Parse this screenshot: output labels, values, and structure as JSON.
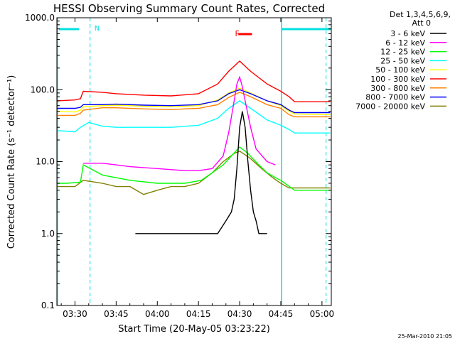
{
  "chart_data": {
    "type": "line",
    "title": "HESSI Observing Summary Count Rates, Corrected",
    "xlabel": "Start Time (20-May-05 03:23:22)",
    "ylabel": "Corrected Count Rate (s⁻¹ detector⁻¹)",
    "y_scale": "log",
    "ylim": [
      0.1,
      1000
    ],
    "xlim_minutes": [
      203.4,
      303.4
    ],
    "x_ticks": [
      {
        "m": 210,
        "label": "03:30"
      },
      {
        "m": 225,
        "label": "03:45"
      },
      {
        "m": 240,
        "label": "04:00"
      },
      {
        "m": 255,
        "label": "04:15"
      },
      {
        "m": 270,
        "label": "04:30"
      },
      {
        "m": 285,
        "label": "04:45"
      },
      {
        "m": 300,
        "label": "05:00"
      }
    ],
    "y_ticks": [
      {
        "v": 0.1,
        "label": "0.1"
      },
      {
        "v": 1,
        "label": "1.0"
      },
      {
        "v": 10,
        "label": "10.0"
      },
      {
        "v": 100,
        "label": "100.0"
      },
      {
        "v": 1000,
        "label": "1000.0"
      }
    ],
    "legend_header": [
      "Det 1,3,4,5,6,9,",
      "Att 0"
    ],
    "series": [
      {
        "name": "3 - 6 keV",
        "color": "#000000",
        "x": [
          232,
          235,
          240,
          250,
          258,
          262,
          265,
          267,
          268,
          269,
          270,
          271,
          272,
          273,
          274,
          275,
          276,
          277,
          278,
          280
        ],
        "y": [
          1.0,
          1.0,
          1.0,
          1.0,
          1.0,
          1.0,
          1.5,
          2.0,
          3.0,
          8.0,
          30,
          50,
          30,
          10,
          4,
          2,
          1.5,
          1.0,
          1.0,
          1.0
        ]
      },
      {
        "name": "6 - 12 keV",
        "color": "#ff00ff",
        "x": [
          213,
          220,
          225,
          230,
          240,
          250,
          255,
          260,
          264,
          266,
          268,
          269,
          270,
          271,
          272,
          274,
          276,
          280,
          283
        ],
        "y": [
          9.5,
          9.5,
          9.0,
          8.5,
          8.0,
          7.5,
          7.5,
          8.0,
          12,
          25,
          70,
          120,
          150,
          110,
          70,
          30,
          15,
          10,
          9
        ]
      },
      {
        "name": "12 - 25 keV",
        "color": "#00ff00",
        "x": [
          203.5,
          207,
          212,
          213,
          220,
          230,
          240,
          250,
          256,
          260,
          264,
          267,
          270,
          273,
          277,
          280,
          283,
          285,
          290,
          303
        ],
        "y": [
          5.0,
          5.0,
          5.2,
          9.0,
          6.5,
          5.5,
          5.0,
          5.0,
          5.5,
          7.0,
          9.0,
          12,
          16,
          13,
          9,
          7,
          6,
          5.5,
          4,
          4
        ]
      },
      {
        "name": "25 - 50 keV",
        "color": "#00ffff",
        "x": [
          203.5,
          210,
          212,
          215,
          220,
          225,
          235,
          245,
          255,
          262,
          266,
          270,
          274,
          280,
          285,
          288,
          290,
          303
        ],
        "y": [
          27,
          26,
          30,
          35,
          31,
          30,
          30,
          30,
          32,
          40,
          55,
          70,
          55,
          38,
          32,
          28,
          25,
          25
        ]
      },
      {
        "name": "50 - 100 keV",
        "color": "#ffff00",
        "x": [
          203.5,
          210,
          212,
          213,
          220,
          225,
          235,
          245,
          255,
          262,
          266,
          270,
          274,
          280,
          285,
          288,
          290,
          303
        ],
        "y": [
          50,
          49,
          52,
          58,
          60,
          61,
          59,
          58,
          60,
          72,
          90,
          105,
          90,
          70,
          60,
          50,
          46,
          45
        ]
      },
      {
        "name": "100 - 300 keV",
        "color": "#ff0000",
        "x": [
          203.5,
          210,
          212,
          213,
          220,
          225,
          235,
          245,
          255,
          262,
          266,
          270,
          274,
          280,
          285,
          288,
          290,
          303
        ],
        "y": [
          70,
          72,
          75,
          95,
          92,
          88,
          84,
          82,
          88,
          120,
          180,
          250,
          180,
          120,
          95,
          80,
          68,
          68
        ]
      },
      {
        "name": "300 - 800 keV",
        "color": "#ff8000",
        "x": [
          203.5,
          210,
          212,
          213,
          220,
          225,
          235,
          245,
          255,
          262,
          266,
          270,
          274,
          280,
          285,
          288,
          290,
          303
        ],
        "y": [
          44,
          44,
          47,
          52,
          56,
          56,
          54,
          53,
          55,
          62,
          78,
          92,
          80,
          62,
          55,
          45,
          42,
          42
        ]
      },
      {
        "name": "800 - 7000 keV",
        "color": "#0000ff",
        "x": [
          203.5,
          210,
          212,
          213,
          220,
          225,
          235,
          245,
          255,
          262,
          266,
          270,
          274,
          280,
          285,
          288,
          290,
          303
        ],
        "y": [
          55,
          55,
          57,
          62,
          62,
          63,
          61,
          60,
          62,
          70,
          88,
          100,
          88,
          70,
          62,
          52,
          48,
          48
        ]
      },
      {
        "name": "7000 - 20000 keV",
        "color": "#808000",
        "x": [
          203.5,
          210,
          213,
          220,
          225,
          230,
          235,
          240,
          245,
          250,
          255,
          260,
          264,
          268,
          270,
          274,
          278,
          282,
          285,
          288,
          303
        ],
        "y": [
          4.5,
          4.5,
          5.5,
          5.0,
          4.5,
          4.5,
          3.5,
          4.0,
          4.5,
          4.5,
          5.0,
          7.0,
          10,
          13,
          14,
          11,
          8,
          6,
          5,
          4.3,
          4.3
        ]
      }
    ],
    "annotations": [
      {
        "text": "N",
        "color": "#00e0e0"
      },
      {
        "text": "F",
        "color": "#ff0000"
      }
    ],
    "footer_date": "25-Mar-2010 21:05"
  }
}
